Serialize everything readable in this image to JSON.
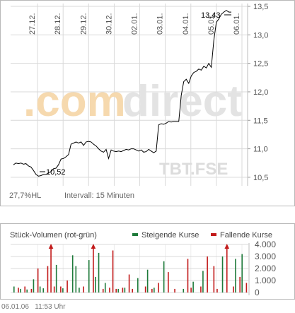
{
  "colors": {
    "price_line": "#000000",
    "grid": "#d9d9d9",
    "rising": "#1e7a3a",
    "falling": "#c21a1a",
    "watermark": "#f2c98a",
    "watermark_grey": "#dcdcdc"
  },
  "watermark": {
    "brand": ".comdirect",
    "brand_a": ".com",
    "brand_b": "direct",
    "source": "TBT.FSE"
  },
  "price_chart": {
    "info_left": "27,7%HL",
    "info_interval": "Intervall: 15 Minuten",
    "high_label": "13,43",
    "low_label": "10,52"
  },
  "volume_chart": {
    "title": "Stück-Volumen (rot-grün)",
    "legend_rising": "Steigende Kurse",
    "legend_falling": "Fallende Kurse"
  },
  "footer": {
    "date": "06.01.06",
    "time": "11:53 Uhr"
  },
  "chart_data": [
    {
      "type": "line",
      "ylim": [
        10.35,
        13.55
      ],
      "yticks": [
        10.5,
        11.0,
        11.5,
        12.0,
        12.5,
        13.0,
        13.5
      ],
      "ytick_labels": [
        "10,5",
        "11,0",
        "11,5",
        "12,0",
        "12,5",
        "13,0",
        "13,5"
      ],
      "xticks": [
        "27.12.",
        "28.12.",
        "29.12.",
        "30.12.",
        "02.01.",
        "03.01.",
        "04.01.",
        "05.01.",
        "06.01."
      ],
      "series": [
        {
          "values": [
            10.72,
            10.75,
            10.74,
            10.75,
            10.73,
            10.74,
            10.7,
            10.68,
            10.62,
            10.55,
            10.52,
            10.53,
            10.55,
            10.55,
            10.58,
            10.6,
            10.65,
            10.66,
            10.72,
            10.82,
            10.83,
            10.86,
            10.9,
            11.08,
            11.1,
            11.12,
            11.1,
            11.12,
            11.06,
            11.12,
            11.13,
            11.12,
            11.08,
            11.05,
            11.0,
            10.96,
            10.94,
            10.99,
            10.83,
            10.98,
            10.96,
            10.95,
            10.96,
            10.95,
            10.97,
            10.99,
            10.98,
            11.0,
            11.0,
            10.98,
            10.96,
            10.98,
            10.94,
            10.95,
            10.99,
            10.96,
            10.93,
            10.96,
            11.42,
            11.44,
            11.43,
            11.45,
            11.48,
            11.47,
            11.48,
            11.48,
            11.48,
            11.94,
            12.18,
            12.22,
            12.15,
            12.28,
            12.34,
            12.36,
            12.4,
            12.38,
            12.45,
            12.42,
            12.5,
            12.43,
            12.9,
            13.22,
            13.28,
            13.36,
            13.4,
            13.43,
            13.4,
            13.4
          ]
        }
      ]
    },
    {
      "type": "bar",
      "ylim": [
        0,
        4000
      ],
      "yticks": [
        0,
        1000,
        2000,
        3000,
        4000
      ],
      "ytick_labels": [
        "0",
        "1.000",
        "2.000",
        "3.000",
        "4.000"
      ],
      "series": [
        {
          "name": "Steigende Kurse",
          "values": [
            500,
            0,
            300,
            0,
            250,
            0,
            1100,
            0,
            500,
            350,
            0,
            0,
            0,
            2300,
            0,
            350,
            0,
            0,
            3100,
            2200,
            400,
            0,
            0,
            2700,
            0,
            1300,
            3300,
            0,
            800,
            0,
            0,
            0,
            300,
            0,
            400,
            0,
            0,
            0,
            1200,
            0,
            0,
            1900,
            0,
            400,
            0,
            0,
            2600,
            0,
            0,
            0,
            0,
            0,
            300,
            0,
            0,
            900,
            0,
            0,
            1800,
            0,
            0,
            0,
            0,
            0,
            3000,
            0,
            0,
            0,
            2800,
            0,
            3200,
            0
          ]
        },
        {
          "name": "Fallende Kurse",
          "values": [
            0,
            400,
            0,
            500,
            0,
            300,
            0,
            2000,
            0,
            0,
            2200,
            4000,
            500,
            0,
            500,
            0,
            1000,
            0,
            0,
            0,
            0,
            500,
            0,
            0,
            4000,
            0,
            0,
            300,
            0,
            400,
            3500,
            300,
            0,
            400,
            0,
            1500,
            300,
            0,
            0,
            0,
            500,
            0,
            300,
            0,
            800,
            0,
            0,
            1700,
            0,
            300,
            0,
            0,
            0,
            2800,
            400,
            0,
            0,
            500,
            0,
            3000,
            0,
            2200,
            300,
            0,
            0,
            4000,
            0,
            500,
            0,
            1300,
            0,
            800
          ]
        }
      ]
    }
  ]
}
